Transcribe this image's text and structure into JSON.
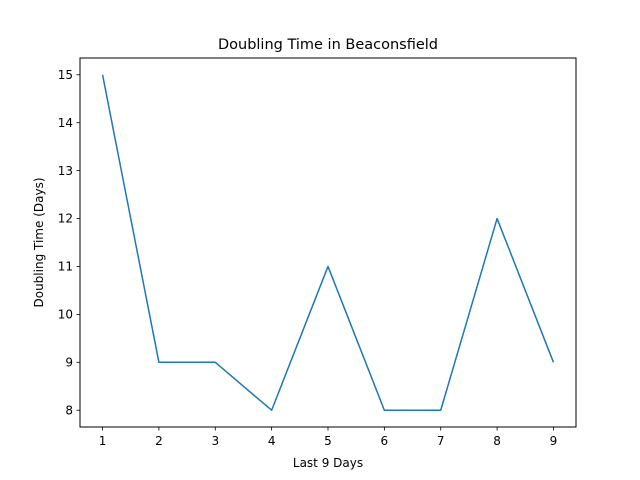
{
  "chart_data": {
    "type": "line",
    "title": "Doubling Time in  Beaconsfield",
    "xlabel": "Last 9 Days",
    "ylabel": "Doubling Time (Days)",
    "x": [
      1,
      2,
      3,
      4,
      5,
      6,
      7,
      8,
      9
    ],
    "series": [
      {
        "values": [
          15,
          9,
          9,
          8,
          11,
          8,
          8,
          12,
          9
        ],
        "color": "#1f77b4"
      }
    ],
    "xticks": [
      1,
      2,
      3,
      4,
      5,
      6,
      7,
      8,
      9
    ],
    "yticks": [
      8,
      9,
      10,
      11,
      12,
      13,
      14,
      15
    ],
    "xlim": [
      0.6,
      9.4
    ],
    "ylim": [
      7.65,
      15.35
    ],
    "grid": false,
    "legend": "none"
  }
}
